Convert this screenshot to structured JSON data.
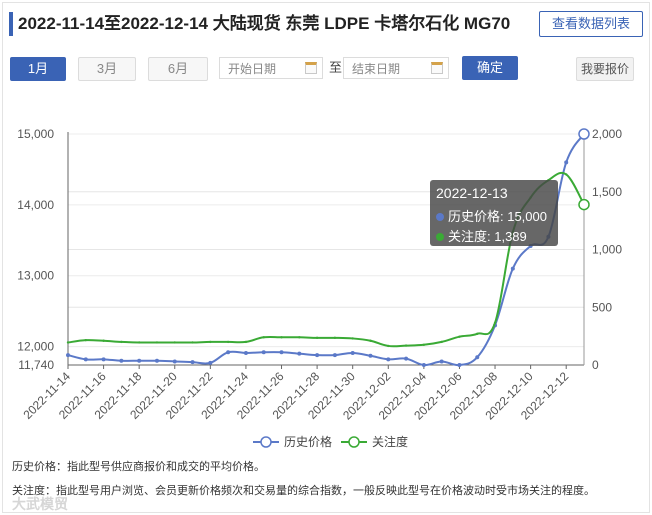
{
  "header": {
    "title": "2022-11-14至2022-12-14 大陆现货 东莞 LDPE 卡塔尔石化 MG70",
    "data_list_button": "查看数据列表"
  },
  "controls": {
    "range_buttons": [
      "1月",
      "3月",
      "6月"
    ],
    "active_range": "1月",
    "start_placeholder": "开始日期",
    "to_label": "至",
    "end_placeholder": "结束日期",
    "confirm_label": "确定",
    "quote_label": "我要报价"
  },
  "colors": {
    "accent": "#3a63b5",
    "price": "#5b79c8",
    "attention": "#3aaa35"
  },
  "chart_data": {
    "type": "line",
    "x": [
      "2022-11-14",
      "2022-11-15",
      "2022-11-16",
      "2022-11-17",
      "2022-11-18",
      "2022-11-19",
      "2022-11-20",
      "2022-11-21",
      "2022-11-22",
      "2022-11-23",
      "2022-11-24",
      "2022-11-25",
      "2022-11-26",
      "2022-11-27",
      "2022-11-28",
      "2022-11-29",
      "2022-11-30",
      "2022-12-01",
      "2022-12-02",
      "2022-12-03",
      "2022-12-04",
      "2022-12-05",
      "2022-12-06",
      "2022-12-07",
      "2022-12-08",
      "2022-12-09",
      "2022-12-10",
      "2022-12-11",
      "2022-12-12",
      "2022-12-13"
    ],
    "x_tick_labels": [
      "2022-11-14",
      "2022-11-16",
      "2022-11-18",
      "2022-11-20",
      "2022-11-22",
      "2022-11-24",
      "2022-11-26",
      "2022-11-28",
      "2022-11-30",
      "2022-12-02",
      "2022-12-04",
      "2022-12-06",
      "2022-12-08",
      "2022-12-10",
      "2022-12-12"
    ],
    "series": [
      {
        "name": "历史价格",
        "axis": "left",
        "values": [
          11880,
          11820,
          11820,
          11800,
          11800,
          11800,
          11790,
          11780,
          11770,
          11920,
          11910,
          11920,
          11920,
          11900,
          11880,
          11880,
          11910,
          11870,
          11820,
          11830,
          11740,
          11790,
          11740,
          11850,
          12300,
          13100,
          13420,
          13550,
          14600,
          15000
        ]
      },
      {
        "name": "关注度",
        "axis": "right",
        "values": [
          195,
          215,
          210,
          200,
          195,
          195,
          195,
          195,
          200,
          200,
          200,
          240,
          240,
          240,
          235,
          235,
          230,
          210,
          165,
          168,
          175,
          200,
          245,
          270,
          365,
          1150,
          1450,
          1600,
          1650,
          1389
        ]
      }
    ],
    "y_left": {
      "min": 11740,
      "max": 15000,
      "ticks": [
        11740,
        12000,
        13000,
        14000,
        15000
      ],
      "tick_labels": [
        "11,740",
        "12,000",
        "13,000",
        "14,000",
        "15,000"
      ]
    },
    "y_right": {
      "min": 0,
      "max": 2000,
      "ticks": [
        0,
        500,
        1000,
        1500,
        2000
      ],
      "tick_labels": [
        "0",
        "500",
        "1,000",
        "1,500",
        "2,000"
      ]
    },
    "tooltip": {
      "date": "2022-12-13",
      "price_label": "历史价格: 15,000",
      "attention_label": "关注度: 1,389"
    },
    "legend": [
      "历史价格",
      "关注度"
    ]
  },
  "notes": {
    "price_note": "历史价格：指此型号供应商报价和成交的平均价格。",
    "attention_note": "关注度：指此型号用户浏览、会员更新价格频次和交易量的综合指数，一般反映此型号在价格波动时受市场关注的程度。"
  },
  "watermark": "大武模贸"
}
